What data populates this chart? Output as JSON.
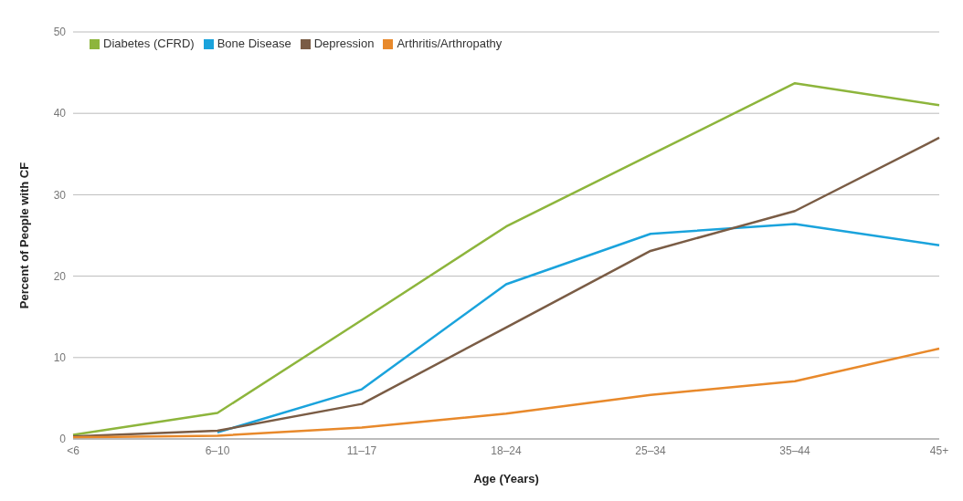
{
  "chart_data": {
    "type": "line",
    "xlabel": "Age (Years)",
    "ylabel": "Percent of People with CF",
    "categories": [
      "<6",
      "6–10",
      "11–17",
      "18–24",
      "25–34",
      "35–44",
      "45+"
    ],
    "series": [
      {
        "name": "Diabetes (CFRD)",
        "color": "#8db53c",
        "values": [
          0.5,
          3.2,
          14.6,
          26.1,
          34.9,
          43.7,
          41
        ]
      },
      {
        "name": "Bone Disease",
        "color": "#1aa3dc",
        "values": [
          null,
          0.8,
          6.1,
          19,
          25.2,
          26.4,
          23.8
        ]
      },
      {
        "name": "Depression",
        "color": "#7a5c45",
        "values": [
          0.3,
          1,
          4.3,
          13.7,
          23.1,
          28,
          37
        ]
      },
      {
        "name": "Arthritis/Arthropathy",
        "color": "#e8892b",
        "values": [
          0.2,
          0.4,
          1.4,
          3.1,
          5.4,
          7.1,
          11.1
        ]
      }
    ],
    "ylim": [
      0,
      50
    ],
    "yticks": [
      0,
      10,
      20,
      30,
      40,
      50
    ],
    "grid": "y",
    "legend": "top left",
    "marker": "none",
    "line_style": "solid"
  }
}
